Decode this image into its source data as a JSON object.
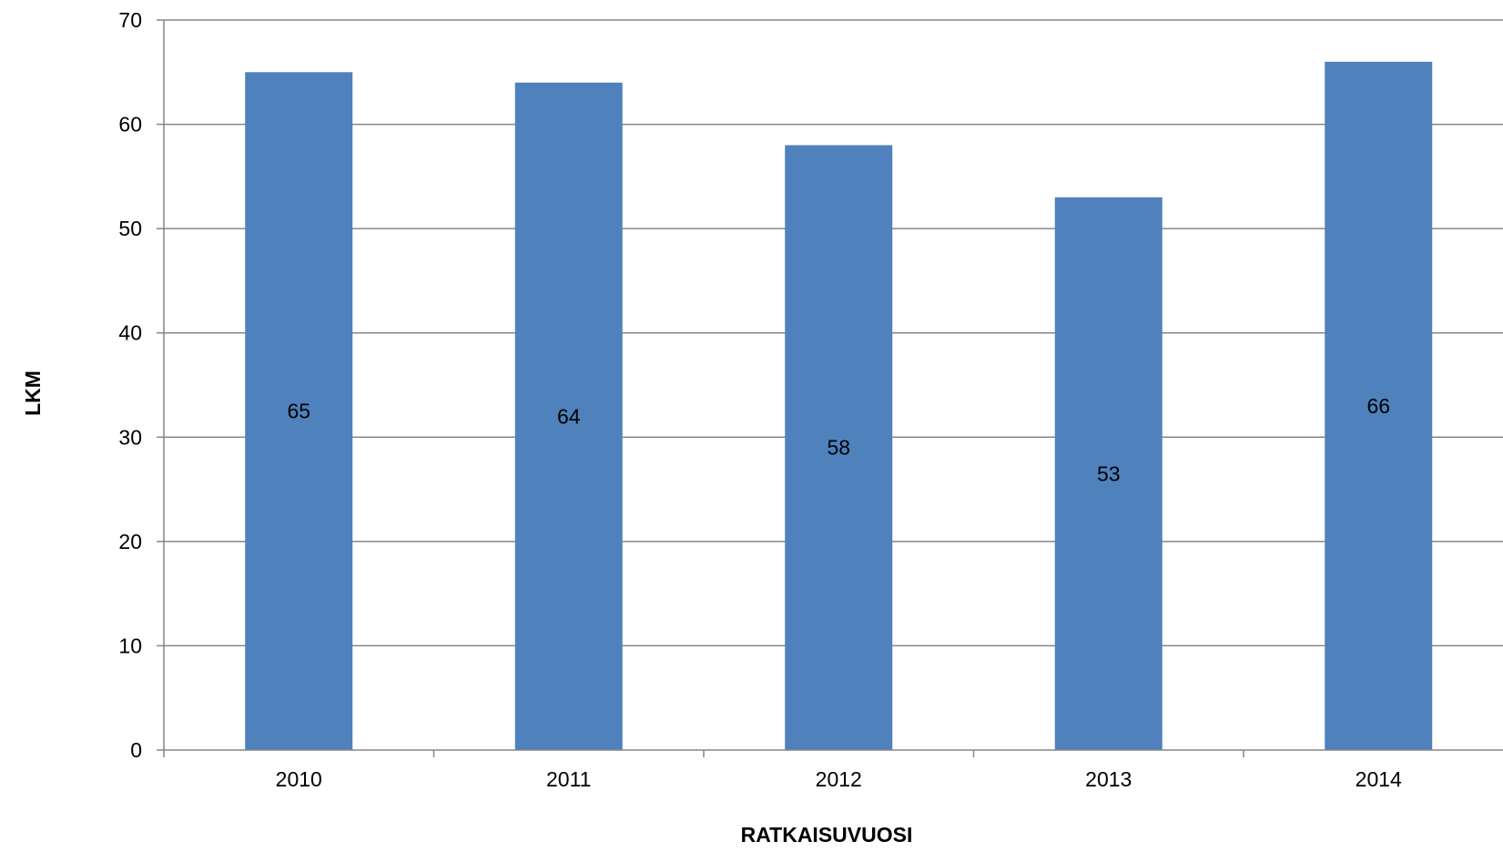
{
  "chart_data": {
    "type": "bar",
    "categories": [
      "2010",
      "2011",
      "2012",
      "2013",
      "2014"
    ],
    "values": [
      65,
      64,
      58,
      53,
      66
    ],
    "data_labels": [
      "65",
      "64",
      "58",
      "53",
      "66"
    ],
    "title": "",
    "xlabel": "RATKAISUVUOSI",
    "ylabel": "LKM",
    "ylim": [
      0,
      70
    ],
    "yticks": [
      0,
      10,
      20,
      30,
      40,
      50,
      60,
      70
    ],
    "grid": true,
    "legend": "none",
    "colors": {
      "bar": "#4f81bd",
      "gridline": "#868686",
      "axis": "#868686",
      "text": "#000000"
    }
  }
}
